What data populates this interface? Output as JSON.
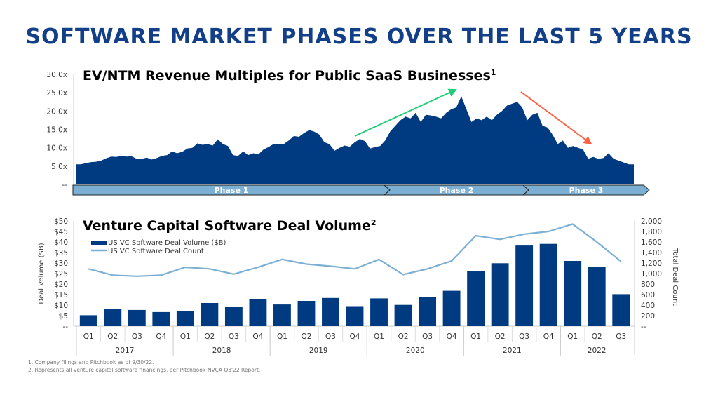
{
  "title": "SOFTWARE MARKET PHASES OVER THE LAST 5 YEARS",
  "colors": {
    "title": "#123f87",
    "navy": "#003a80",
    "light_blue": "#7bafd4",
    "green_arrow": "#22cc77",
    "red_arrow": "#ff6040"
  },
  "chart_data": [
    {
      "type": "area",
      "title": "EV/NTM Revenue Multiples for Public SaaS Businesses",
      "title_sup": "1",
      "ylim": [
        0,
        30
      ],
      "yticks": [
        "--",
        "5.0x",
        "10.0x",
        "15.0x",
        "20.0x",
        "25.0x",
        "30.0x"
      ],
      "grid": false,
      "phases": [
        "Phase 1",
        "Phase 2",
        "Phase 3"
      ],
      "annotations": [
        "green-up-arrow",
        "red-down-arrow"
      ],
      "values": [
        5.5,
        5.5,
        5.8,
        6.1,
        6.2,
        6.5,
        7.1,
        7.6,
        7.5,
        7.8,
        7.6,
        7.7,
        7.0,
        7.0,
        7.3,
        6.8,
        7.2,
        7.8,
        8.0,
        9.0,
        8.5,
        8.9,
        9.8,
        10.0,
        11.2,
        10.8,
        11.0,
        10.6,
        12.3,
        11.0,
        10.5,
        8.0,
        7.8,
        9.0,
        8.0,
        8.5,
        8.2,
        9.5,
        10.2,
        11.0,
        11.0,
        11.0,
        12.0,
        13.2,
        13.0,
        14.0,
        14.8,
        14.4,
        13.6,
        11.5,
        11.0,
        9.2,
        10.0,
        10.6,
        10.3,
        11.5,
        12.4,
        11.8,
        9.8,
        10.2,
        10.5,
        12.0,
        14.5,
        16.0,
        17.5,
        18.5,
        18.0,
        19.5,
        17.0,
        19.0,
        18.8,
        18.5,
        18.0,
        19.5,
        20.5,
        21.0,
        24.0,
        20.5,
        17.0,
        18.0,
        17.5,
        18.5,
        17.5,
        19.0,
        20.0,
        21.5,
        22.0,
        22.5,
        21.0,
        17.5,
        19.0,
        19.5,
        16.0,
        15.5,
        13.5,
        11.0,
        12.0,
        10.0,
        10.5,
        10.0,
        9.5,
        7.0,
        7.5,
        7.0,
        7.2,
        8.5,
        7.0,
        6.5,
        6.0,
        5.5,
        5.5
      ]
    },
    {
      "type": "bar",
      "title": "Venture Capital Software Deal Volume",
      "title_sup": "2",
      "ylabel": "Deal Volume ($B)",
      "y2label": "Total Deal Count",
      "ylim": [
        0,
        50
      ],
      "y2lim": [
        0,
        2000
      ],
      "yticks": [
        "--",
        "$5",
        "$10",
        "$15",
        "$20",
        "$25",
        "$30",
        "$35",
        "$40",
        "$45",
        "$50"
      ],
      "y2ticks": [
        "--",
        "200",
        "400",
        "600",
        "800",
        "1,000",
        "1,200",
        "1,400",
        "1,600",
        "1,800",
        "2,000"
      ],
      "legend_position": "top-left",
      "categories": [
        "Q1",
        "Q2",
        "Q3",
        "Q4",
        "Q1",
        "Q2",
        "Q3",
        "Q4",
        "Q1",
        "Q2",
        "Q3",
        "Q4",
        "Q1",
        "Q2",
        "Q3",
        "Q4",
        "Q1",
        "Q2",
        "Q3",
        "Q4",
        "Q1",
        "Q2",
        "Q3"
      ],
      "years": [
        {
          "label": "2017",
          "count": 4
        },
        {
          "label": "2018",
          "count": 4
        },
        {
          "label": "2019",
          "count": 4
        },
        {
          "label": "2020",
          "count": 4
        },
        {
          "label": "2021",
          "count": 4
        },
        {
          "label": "2022",
          "count": 3
        }
      ],
      "series": [
        {
          "name": "US VC Software Deal Volume ($B)",
          "type": "bar",
          "axis": "left",
          "values": [
            5.2,
            8.3,
            7.7,
            6.7,
            7.3,
            11.0,
            9.0,
            12.7,
            10.3,
            12.0,
            13.4,
            9.5,
            13.2,
            10.1,
            13.9,
            16.8,
            26.3,
            29.9,
            38.3,
            39.1,
            31.0,
            28.3,
            15.2
          ]
        },
        {
          "name": "US VC Software Deal Count",
          "type": "line",
          "axis": "right",
          "values": [
            1090,
            970,
            950,
            970,
            1120,
            1090,
            990,
            1120,
            1270,
            1180,
            1140,
            1090,
            1270,
            980,
            1090,
            1240,
            1720,
            1650,
            1750,
            1800,
            1940,
            1600,
            1230
          ]
        }
      ]
    }
  ],
  "footnotes": [
    "1. Company filings and Pitchbook as of 9/30/22.",
    "2. Represents all venture capital software financings, per Pitchbook-NVCA Q3'22 Report."
  ]
}
